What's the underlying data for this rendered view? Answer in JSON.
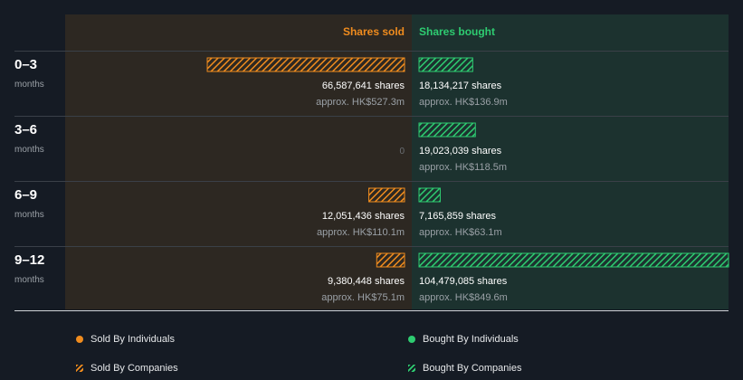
{
  "colors": {
    "background": "#151b24",
    "sold_panel": "#2d2822",
    "bought_panel": "#1c322f",
    "sold": "#f08c1e",
    "bought": "#2ecc71",
    "muted_text": "#9aa0a6",
    "zero_text": "#6b6f74"
  },
  "chart_data": {
    "type": "bar",
    "orientation": "horizontal-diverging",
    "headers": {
      "sold": "Shares sold",
      "bought": "Shares bought"
    },
    "periods": [
      {
        "label": "0–3",
        "unit": "months",
        "sold": {
          "shares": 66587641,
          "shares_label": "66,587,641 shares",
          "approx": "approx. HK$527.3m"
        },
        "bought": {
          "shares": 18134217,
          "shares_label": "18,134,217 shares",
          "approx": "approx. HK$136.9m"
        }
      },
      {
        "label": "3–6",
        "unit": "months",
        "sold": {
          "shares": 0,
          "shares_label": "0",
          "approx": ""
        },
        "bought": {
          "shares": 19023039,
          "shares_label": "19,023,039 shares",
          "approx": "approx. HK$118.5m"
        }
      },
      {
        "label": "6–9",
        "unit": "months",
        "sold": {
          "shares": 12051436,
          "shares_label": "12,051,436 shares",
          "approx": "approx. HK$110.1m"
        },
        "bought": {
          "shares": 7165859,
          "shares_label": "7,165,859 shares",
          "approx": "approx. HK$63.1m"
        }
      },
      {
        "label": "9–12",
        "unit": "months",
        "sold": {
          "shares": 9380448,
          "shares_label": "9,380,448 shares",
          "approx": "approx. HK$75.1m"
        },
        "bought": {
          "shares": 104479085,
          "shares_label": "104,479,085 shares",
          "approx": "approx. HK$849.6m"
        }
      }
    ],
    "max_shares": 104479085
  },
  "legend": [
    {
      "label": "Sold By Individuals",
      "marker": "dot",
      "color": "#f08c1e"
    },
    {
      "label": "Bought By Individuals",
      "marker": "dot",
      "color": "#2ecc71"
    },
    {
      "label": "Sold By Companies",
      "marker": "hatch",
      "color": "#f08c1e"
    },
    {
      "label": "Bought By Companies",
      "marker": "hatch",
      "color": "#2ecc71"
    }
  ]
}
